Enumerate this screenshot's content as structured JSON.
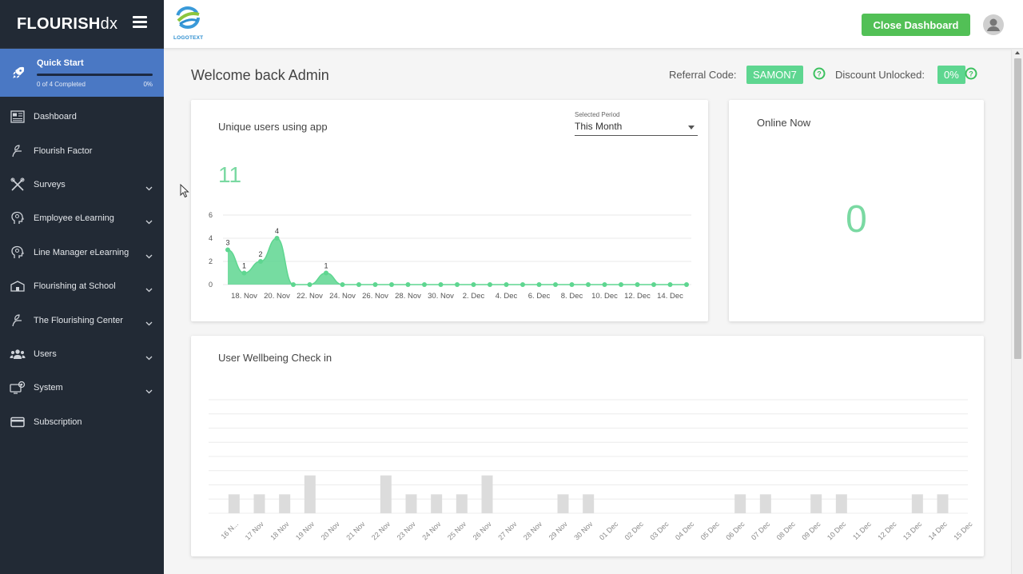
{
  "sidebar": {
    "brand_bold": "FLOURISH",
    "brand_light": "dx",
    "quick_start": {
      "title": "Quick Start",
      "progress_text": "0 of 4 Completed",
      "percent": "0%",
      "progress_fraction": 0
    },
    "items": [
      {
        "label": "Dashboard",
        "icon": "dashboard-icon",
        "has_submenu": false
      },
      {
        "label": "Flourish Factor",
        "icon": "hand-leaf-icon",
        "has_submenu": false
      },
      {
        "label": "Surveys",
        "icon": "tools-icon",
        "has_submenu": true
      },
      {
        "label": "Employee eLearning",
        "icon": "head-icon",
        "has_submenu": true
      },
      {
        "label": "Line Manager eLearning",
        "icon": "head-icon",
        "has_submenu": true
      },
      {
        "label": "Flourishing at School",
        "icon": "school-icon",
        "has_submenu": true
      },
      {
        "label": "The Flourishing Center",
        "icon": "hand-leaf-icon",
        "has_submenu": true
      },
      {
        "label": "Users",
        "icon": "users-icon",
        "has_submenu": true
      },
      {
        "label": "System",
        "icon": "system-icon",
        "has_submenu": true
      },
      {
        "label": "Subscription",
        "icon": "card-icon",
        "has_submenu": false
      }
    ]
  },
  "topbar": {
    "logo_text": "LOGOTEXT",
    "close_label": "Close Dashboard"
  },
  "main": {
    "welcome": "Welcome back Admin",
    "referral_label": "Referral Code:",
    "referral_code": "SAMON7",
    "discount_label": "Discount Unlocked:",
    "discount_value": "0%"
  },
  "unique_card": {
    "title": "Unique users using app",
    "period_label": "Selected Period",
    "period_value": "This Month",
    "total": "11"
  },
  "online_card": {
    "title": "Online Now",
    "value": "0"
  },
  "wellbeing_card": {
    "title": "User Wellbeing Check in"
  },
  "colors": {
    "sidebar_bg": "#222a35",
    "quick_start_bg": "#4a78c4",
    "accent_green": "#52c056",
    "chart_green": "#5ed690",
    "bar_gray": "#dcdcdc"
  },
  "chart_data": [
    {
      "type": "area",
      "title": "Unique users using app",
      "x": [
        "17 Nov",
        "18 Nov",
        "19 Nov",
        "20 Nov",
        "21 Nov",
        "22 Nov",
        "23 Nov",
        "24 Nov",
        "25 Nov",
        "26 Nov",
        "27 Nov",
        "28 Nov",
        "29 Nov",
        "30 Nov",
        "1 Dec",
        "2 Dec",
        "3 Dec",
        "4 Dec",
        "5 Dec",
        "6 Dec",
        "7 Dec",
        "8 Dec",
        "9 Dec",
        "10 Dec",
        "11 Dec",
        "12 Dec",
        "13 Dec",
        "14 Dec",
        "15 Dec"
      ],
      "values": [
        3,
        1,
        2,
        4,
        0,
        0,
        1,
        0,
        0,
        0,
        0,
        0,
        0,
        0,
        0,
        0,
        0,
        0,
        0,
        0,
        0,
        0,
        0,
        0,
        0,
        0,
        0,
        0,
        0
      ],
      "data_labels": {
        "0": "3",
        "1": "1",
        "2": "2",
        "3": "4",
        "6": "1"
      },
      "tick_labels": [
        "18. Nov",
        "20. Nov",
        "22. Nov",
        "24. Nov",
        "26. Nov",
        "28. Nov",
        "30. Nov",
        "2. Dec",
        "4. Dec",
        "6. Dec",
        "8. Dec",
        "10. Dec",
        "12. Dec",
        "14. Dec"
      ],
      "y_ticks": [
        0,
        2,
        4,
        6
      ],
      "ylim": [
        0,
        6
      ],
      "grid": true
    },
    {
      "type": "bar",
      "title": "User Wellbeing Check in",
      "categories": [
        "16 N...",
        "17 Nov",
        "18 Nov",
        "19 Nov",
        "20 Nov",
        "21 Nov",
        "22 Nov",
        "23 Nov",
        "24 Nov",
        "25 Nov",
        "26 Nov",
        "27 Nov",
        "28 Nov",
        "29 Nov",
        "30 Nov",
        "01 Dec",
        "02 Dec",
        "03 Dec",
        "04 Dec",
        "05 Dec",
        "06 Dec",
        "07 Dec",
        "08 Dec",
        "09 Dec",
        "10 Dec",
        "11 Dec",
        "12 Dec",
        "13 Dec",
        "14 Dec",
        "15 Dec"
      ],
      "values": [
        1,
        1,
        1,
        2,
        0,
        0,
        2,
        1,
        1,
        1,
        2,
        0,
        0,
        1,
        1,
        0,
        0,
        0,
        0,
        0,
        1,
        1,
        0,
        1,
        1,
        0,
        0,
        1,
        1,
        0
      ],
      "ylim": [
        0,
        6
      ],
      "grid": true
    }
  ]
}
